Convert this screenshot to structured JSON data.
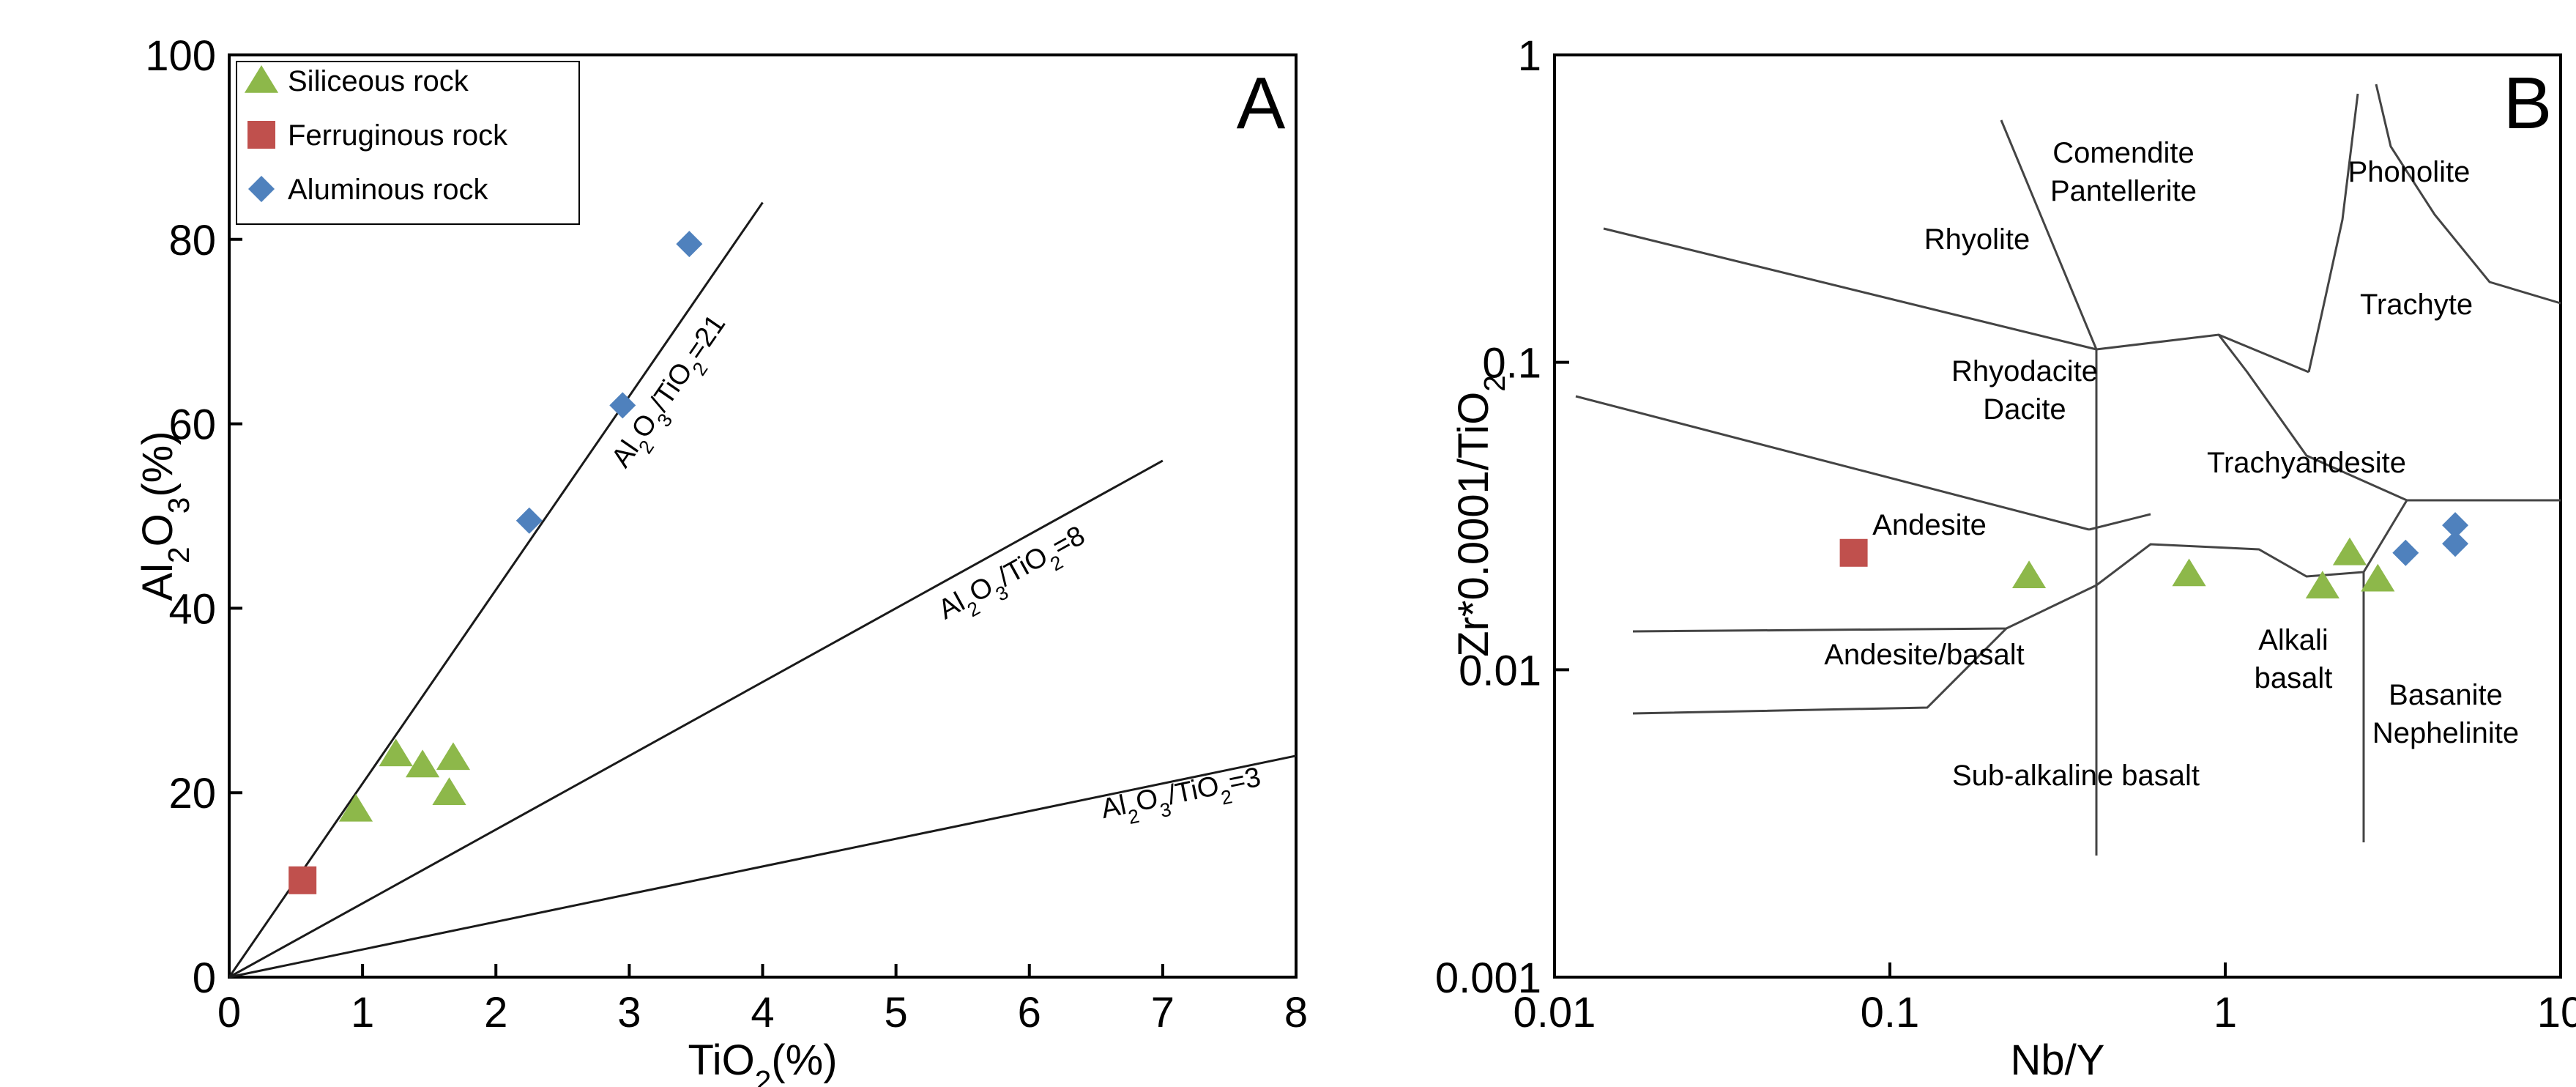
{
  "chart_data": [
    {
      "type": "scatter",
      "panel": "A",
      "xlabel": "TiO2(%)",
      "ylabel": "Al2O3(%)",
      "xlim": [
        0,
        8
      ],
      "ylim": [
        0,
        100
      ],
      "xticks": [
        "0",
        "1",
        "2",
        "3",
        "4",
        "5",
        "6",
        "7",
        "8"
      ],
      "yticks": [
        "0",
        "20",
        "40",
        "60",
        "80",
        "100"
      ],
      "legend": {
        "placement": "top-left",
        "entries": [
          {
            "label": "Siliceous rock",
            "marker": "triangle",
            "color": "#8db84a"
          },
          {
            "label": "Ferruginous rock",
            "marker": "square",
            "color": "#c0504d"
          },
          {
            "label": "Aluminous rock",
            "marker": "diamond",
            "color": "#4f81bd"
          }
        ]
      },
      "reference_lines": [
        {
          "ratio": 21,
          "label_main": "Al",
          "label_sub": "2",
          "label_mid": "O",
          "label_sub2": "3",
          "label_tail": "/TiO",
          "label_sub3": "2",
          "label_end": "=21",
          "x_end": 4
        },
        {
          "ratio": 8,
          "label_main": "Al",
          "label_sub": "2",
          "label_mid": "O",
          "label_sub2": "3",
          "label_tail": "/TiO",
          "label_sub3": "2",
          "label_end": "=8",
          "x_end": 7
        },
        {
          "ratio": 3,
          "label_main": "Al",
          "label_sub": "2",
          "label_mid": "O",
          "label_sub2": "3",
          "label_tail": "/TiO",
          "label_sub3": "2",
          "label_end": "=3",
          "x_end": 8
        }
      ],
      "series": [
        {
          "name": "Siliceous rock",
          "points": [
            [
              0.95,
              18.2
            ],
            [
              1.25,
              24.2
            ],
            [
              1.45,
              23.0
            ],
            [
              1.65,
              20.0
            ],
            [
              1.68,
              23.8
            ]
          ]
        },
        {
          "name": "Ferruginous rock",
          "points": [
            [
              0.55,
              10.5
            ]
          ]
        },
        {
          "name": "Aluminous rock",
          "points": [
            [
              2.25,
              49.5
            ],
            [
              2.95,
              62.0
            ],
            [
              3.45,
              79.5
            ]
          ]
        }
      ]
    },
    {
      "type": "scatter",
      "panel": "B",
      "scale": "log-log",
      "xlabel": "Nb/Y",
      "ylabel": "Zr*0.0001/TiO2",
      "xlim": [
        0.01,
        10
      ],
      "ylim": [
        0.001,
        1
      ],
      "xticks": [
        "0.01",
        "0.1",
        "1",
        "10"
      ],
      "yticks": [
        "0.001",
        "0.01",
        "0.1",
        "1"
      ],
      "regions": [
        {
          "lines": [
            "Comendite",
            "Pantellerite"
          ]
        },
        {
          "lines": [
            "Phonolite"
          ]
        },
        {
          "lines": [
            "Rhyolite"
          ]
        },
        {
          "lines": [
            "Trachyte"
          ]
        },
        {
          "lines": [
            "Rhyodacite",
            "Dacite"
          ]
        },
        {
          "lines": [
            "Trachyandesite"
          ]
        },
        {
          "lines": [
            "Andesite"
          ]
        },
        {
          "lines": [
            "Andesite/basalt"
          ]
        },
        {
          "lines": [
            "Alkali",
            "basalt"
          ]
        },
        {
          "lines": [
            "Basanite",
            "Nephelinite"
          ]
        },
        {
          "lines": [
            "Sub-alkaline basalt"
          ]
        }
      ],
      "series": [
        {
          "name": "Siliceous rock",
          "points": [
            [
              0.26,
              0.0202
            ],
            [
              0.78,
              0.0205
            ],
            [
              1.95,
              0.0187
            ],
            [
              2.35,
              0.024
            ],
            [
              2.85,
              0.0197
            ]
          ]
        },
        {
          "name": "Ferruginous rock",
          "points": [
            [
              0.078,
              0.024
            ]
          ]
        },
        {
          "name": "Aluminous rock",
          "points": [
            [
              3.45,
              0.024
            ],
            [
              4.85,
              0.0257
            ],
            [
              4.85,
              0.0295
            ]
          ]
        }
      ]
    }
  ]
}
